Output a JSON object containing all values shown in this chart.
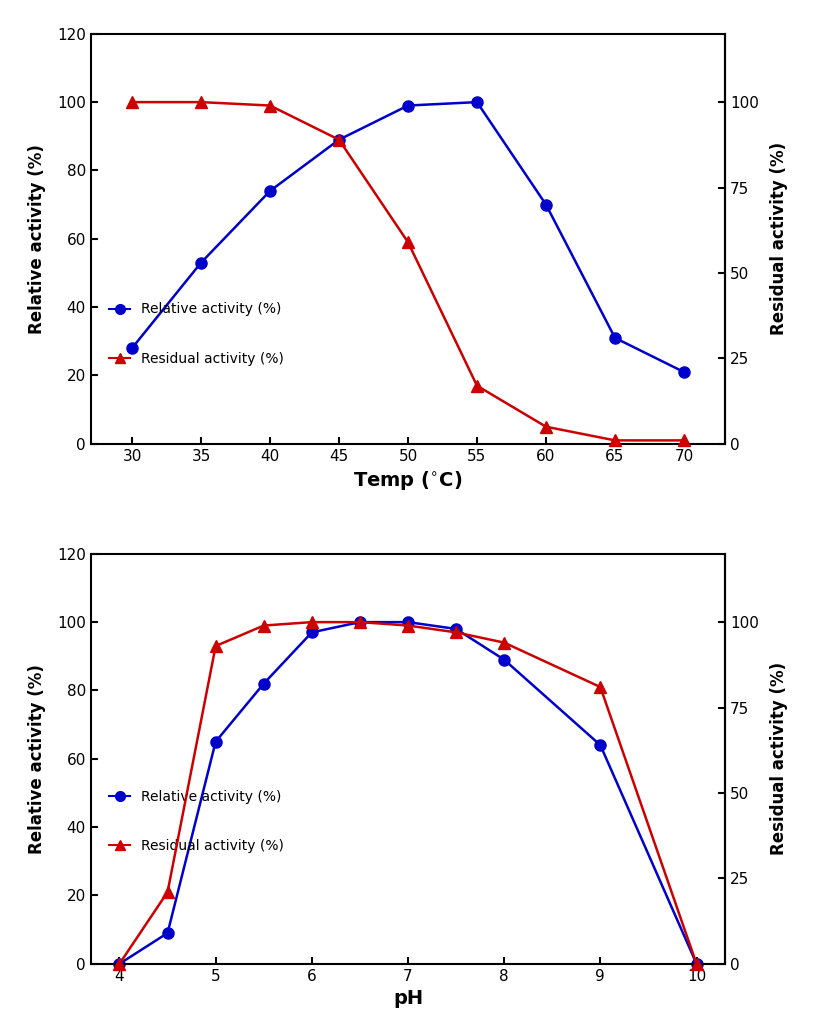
{
  "temp_blue_x": [
    30,
    35,
    40,
    45,
    50,
    55,
    60,
    65,
    70
  ],
  "temp_blue_y": [
    28,
    53,
    74,
    89,
    99,
    100,
    70,
    31,
    21
  ],
  "temp_red_x": [
    30,
    35,
    40,
    45,
    50,
    55,
    60,
    65,
    70
  ],
  "temp_red_y": [
    100,
    100,
    99,
    89,
    59,
    17,
    5,
    1,
    1
  ],
  "ph_blue_x": [
    4,
    4.5,
    5,
    5.5,
    6,
    6.5,
    7,
    7.5,
    8,
    9,
    10
  ],
  "ph_blue_y": [
    0,
    9,
    65,
    82,
    97,
    100,
    100,
    98,
    89,
    64,
    0
  ],
  "ph_red_x": [
    4,
    4.5,
    5,
    5.5,
    6,
    6.5,
    7,
    7.5,
    8,
    9,
    10
  ],
  "ph_red_y": [
    0,
    21,
    93,
    99,
    100,
    100,
    99,
    97,
    94,
    81,
    0
  ],
  "blue_color": "#0000cc",
  "red_color": "#cc0000",
  "temp_xlabel": "Temp ($^{\\circ}$C)",
  "ph_xlabel": "pH",
  "left_ylabel": "Relative activity (%)",
  "right_ylabel": "Residual activity (%)",
  "ylim_left": [
    0,
    120
  ],
  "yticks_left": [
    0,
    20,
    40,
    60,
    80,
    100,
    120
  ],
  "yticks_right": [
    0,
    25,
    50,
    75,
    100
  ],
  "temp_xticks": [
    30,
    35,
    40,
    45,
    50,
    55,
    60,
    65,
    70
  ],
  "ph_xticks": [
    4,
    5,
    6,
    7,
    8,
    9,
    10
  ],
  "legend_blue_label": "Relative activity (%)",
  "legend_red_label": "Residual activity (%)"
}
